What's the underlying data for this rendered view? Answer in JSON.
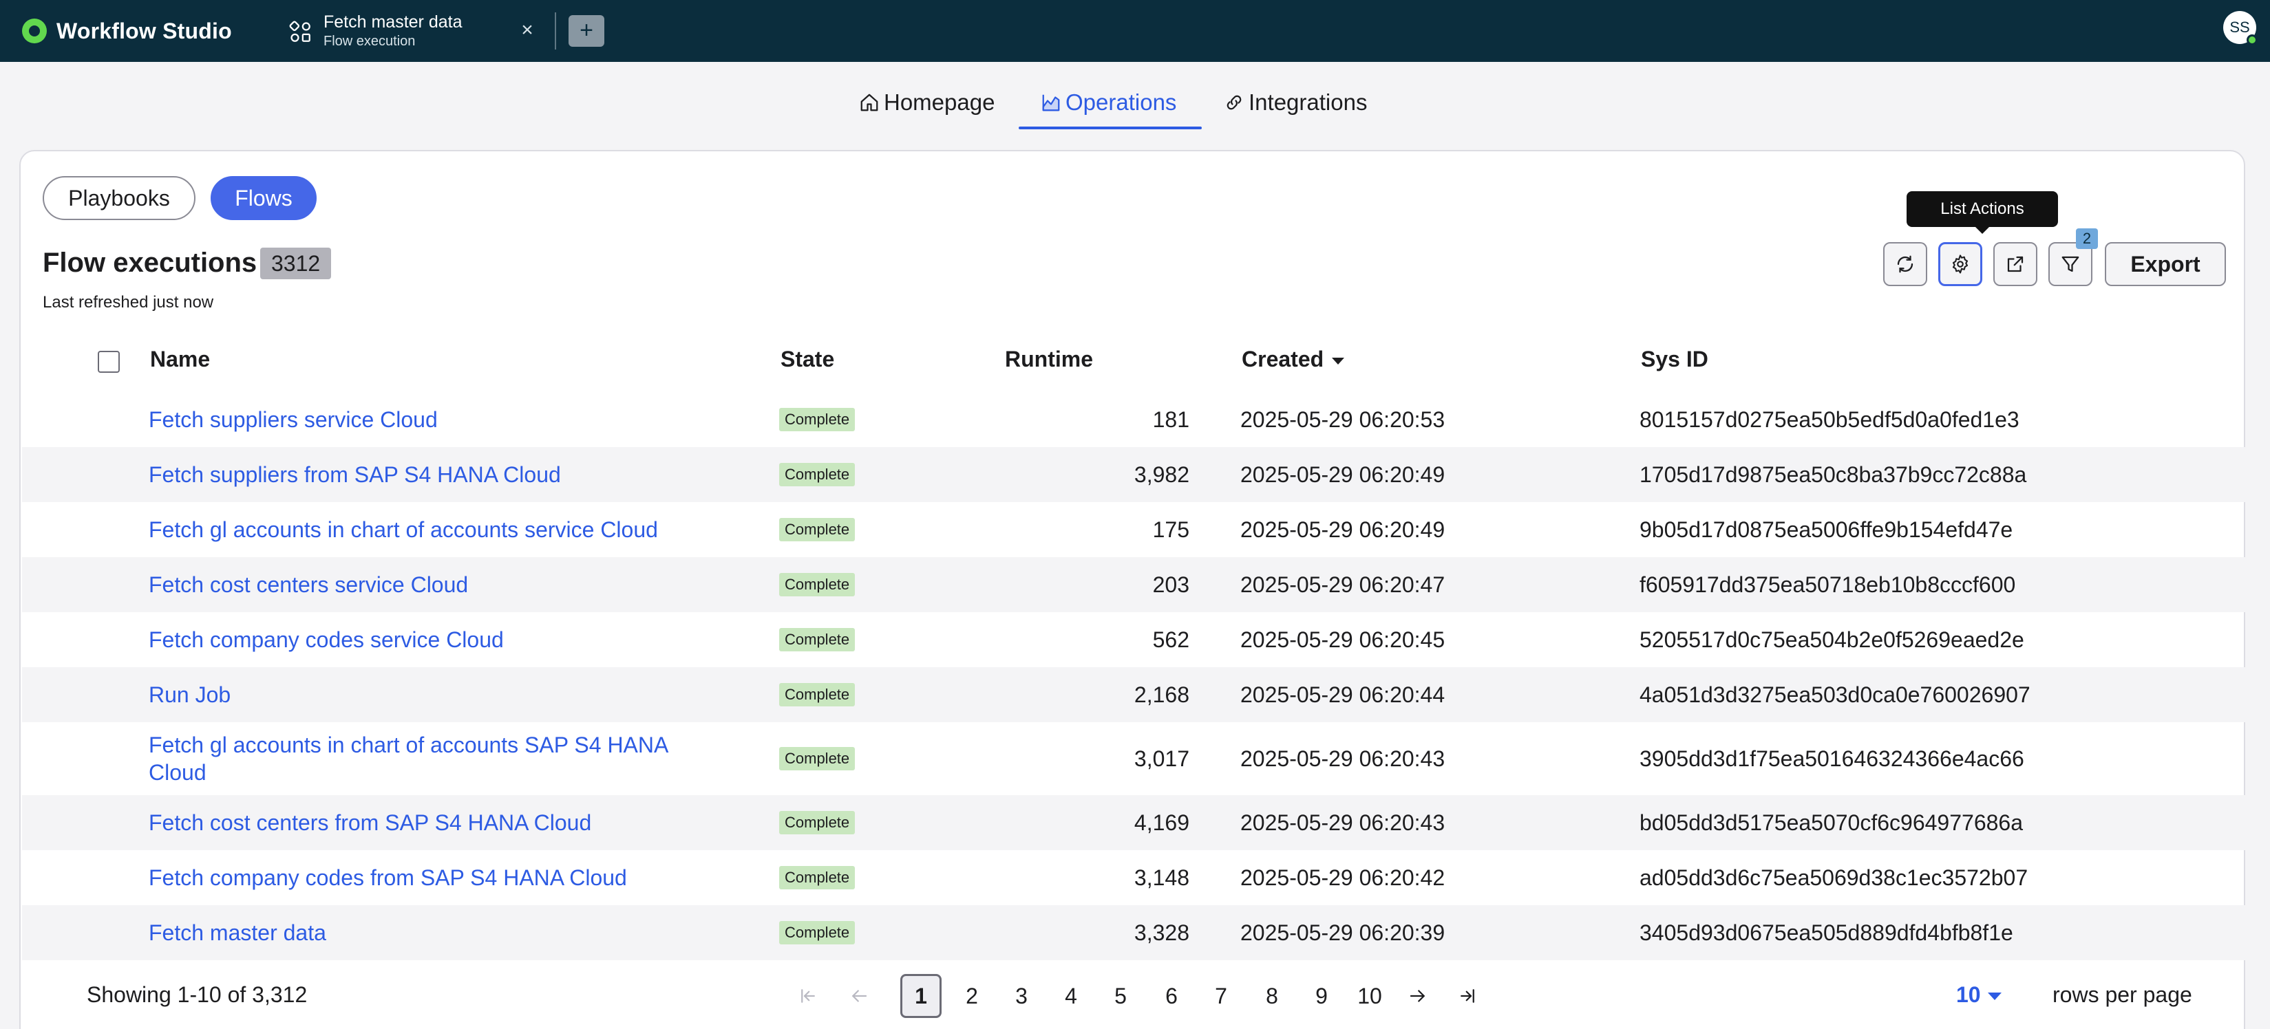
{
  "app": {
    "name": "Workflow Studio"
  },
  "tab": {
    "title": "Fetch master data",
    "subtitle": "Flow execution",
    "close_glyph": "×",
    "new_glyph": "+"
  },
  "user": {
    "initials": "SS"
  },
  "nav": {
    "home": "Homepage",
    "operations": "Operations",
    "integrations": "Integrations"
  },
  "filters": {
    "playbooks": "Playbooks",
    "flows": "Flows"
  },
  "header": {
    "title": "Flow executions",
    "count": "3312",
    "refreshed": "Last refreshed just now",
    "tooltip": "List Actions",
    "filter_count": "2",
    "export": "Export"
  },
  "columns": {
    "name": "Name",
    "state": "State",
    "runtime": "Runtime",
    "created": "Created",
    "sysid": "Sys ID"
  },
  "rows": [
    {
      "name": "Fetch suppliers service Cloud",
      "state": "Complete",
      "runtime": "181",
      "created": "2025-05-29 06:20:53",
      "sysid": "8015157d0275ea50b5edf5d0a0fed1e3"
    },
    {
      "name": "Fetch suppliers from SAP S4 HANA Cloud",
      "state": "Complete",
      "runtime": "3,982",
      "created": "2025-05-29 06:20:49",
      "sysid": "1705d17d9875ea50c8ba37b9cc72c88a"
    },
    {
      "name": "Fetch gl accounts in chart of accounts service Cloud",
      "state": "Complete",
      "runtime": "175",
      "created": "2025-05-29 06:20:49",
      "sysid": "9b05d17d0875ea5006ffe9b154efd47e"
    },
    {
      "name": "Fetch cost centers service Cloud",
      "state": "Complete",
      "runtime": "203",
      "created": "2025-05-29 06:20:47",
      "sysid": "f605917dd375ea50718eb10b8cccf600"
    },
    {
      "name": "Fetch company codes service Cloud",
      "state": "Complete",
      "runtime": "562",
      "created": "2025-05-29 06:20:45",
      "sysid": "5205517d0c75ea504b2e0f5269eaed2e"
    },
    {
      "name": "Run Job",
      "state": "Complete",
      "runtime": "2,168",
      "created": "2025-05-29 06:20:44",
      "sysid": "4a051d3d3275ea503d0ca0e760026907"
    },
    {
      "name": "Fetch gl accounts in chart of accounts SAP S4 HANA Cloud",
      "state": "Complete",
      "runtime": "3,017",
      "created": "2025-05-29 06:20:43",
      "sysid": "3905dd3d1f75ea501646324366e4ac66"
    },
    {
      "name": "Fetch cost centers from SAP S4 HANA Cloud",
      "state": "Complete",
      "runtime": "4,169",
      "created": "2025-05-29 06:20:43",
      "sysid": "bd05dd3d5175ea5070cf6c964977686a"
    },
    {
      "name": "Fetch company codes from SAP S4 HANA Cloud",
      "state": "Complete",
      "runtime": "3,148",
      "created": "2025-05-29 06:20:42",
      "sysid": "ad05dd3d6c75ea5069d38c1ec3572b07"
    },
    {
      "name": "Fetch master data",
      "state": "Complete",
      "runtime": "3,328",
      "created": "2025-05-29 06:20:39",
      "sysid": "3405d93d0675ea505d889dfd4bfb8f1e"
    }
  ],
  "pagination": {
    "showing": "Showing 1-10 of 3,312",
    "pages": [
      "1",
      "2",
      "3",
      "4",
      "5",
      "6",
      "7",
      "8",
      "9",
      "10"
    ],
    "current": "1",
    "rows_per_page": "10",
    "rows_label": "rows per page"
  },
  "icons": {
    "brand": "brand-logo-icon",
    "tab": "flow-diagram-icon",
    "home": "home-icon",
    "operations": "chart-icon",
    "integrations": "link-icon",
    "refresh": "refresh-icon",
    "settings": "gear-icon",
    "share": "share-icon",
    "filter": "filter-icon"
  },
  "colors": {
    "topbar": "#0b2d3d",
    "accent": "#2d5be3",
    "badge": "#c9e7bf"
  }
}
